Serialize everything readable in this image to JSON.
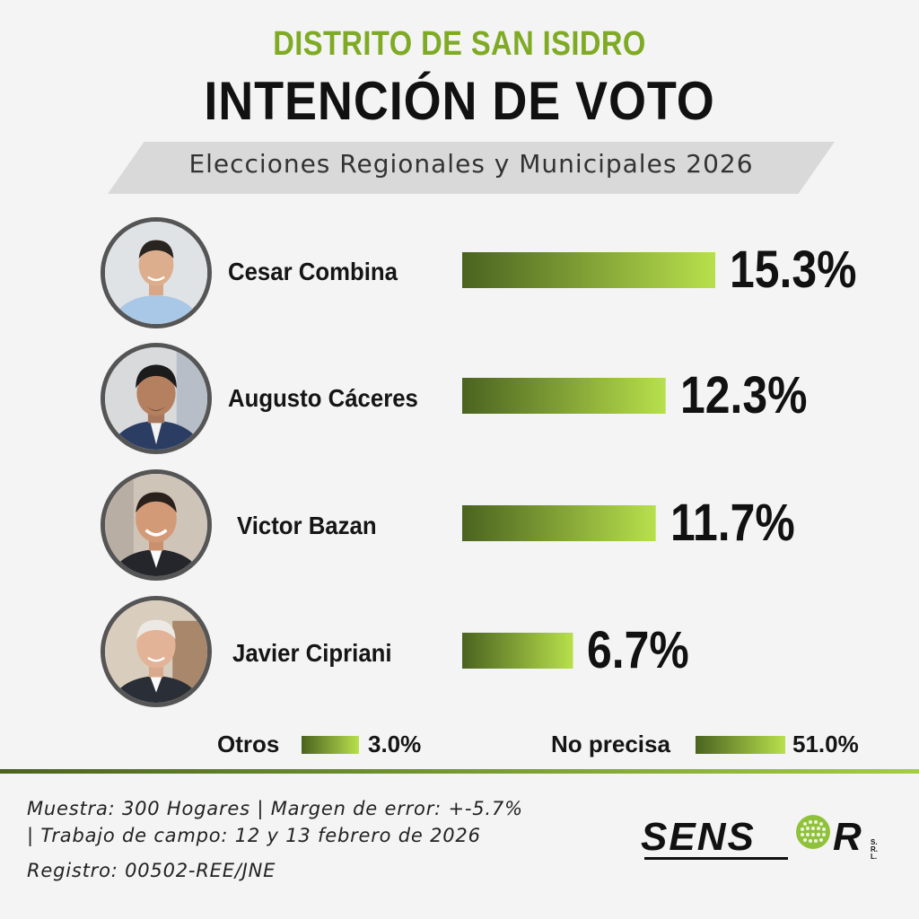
{
  "header": {
    "district": "DISTRITO DE SAN ISIDRO",
    "title": "INTENCIÓN DE VOTO",
    "subtitle": "Elecciones Regionales y Municipales 2026"
  },
  "colors": {
    "accent_green": "#7faa24",
    "bar_dark": "#4a6320",
    "bar_light": "#b8e04c",
    "banner_gray": "#d9d9d9"
  },
  "chart_data": {
    "type": "bar",
    "orientation": "horizontal",
    "title": "INTENCIÓN DE VOTO",
    "subtitle": "Elecciones Regionales y Municipales 2026",
    "categories": [
      "Cesar Combina",
      "Augusto Cáceres",
      "Victor Bazan",
      "Javier Cipriani"
    ],
    "values": [
      15.3,
      12.3,
      11.7,
      6.7
    ],
    "value_labels": [
      "15.3%",
      "12.3%",
      "11.7%",
      "6.7%"
    ],
    "unit": "%",
    "extra": [
      {
        "label": "Otros",
        "value": 3.0,
        "value_label": "3.0%"
      },
      {
        "label": "No precisa",
        "value": 51.0,
        "value_label": "51.0%"
      }
    ],
    "grid": false,
    "legend": "none"
  },
  "footer": {
    "line1": "Muestra: 300 Hogares | Margen de error: +-5.7%",
    "line2": "| Trabajo de campo: 12 y 13 febrero de 2026",
    "line3": "Registro: 00502-REE/JNE",
    "logo_text": "SENSOR",
    "logo_suffix": "S.R.L.",
    "logo_icon": "globe-dots-icon"
  }
}
